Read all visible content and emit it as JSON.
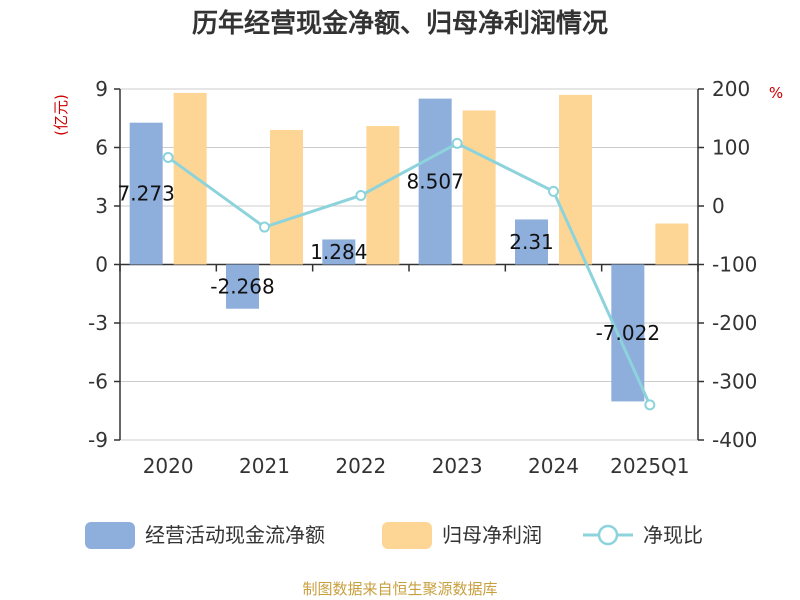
{
  "chart_data": {
    "type": "bar+line",
    "title": "历年经营现金净额、归母净利润情况",
    "categories": [
      "2020",
      "2021",
      "2022",
      "2023",
      "2024",
      "2025Q1"
    ],
    "y_left": {
      "unit": "(亿元)",
      "ylim": [
        -9,
        9
      ],
      "ticks": [
        "9",
        "6",
        "3",
        "0",
        "-3",
        "-6",
        "-9"
      ]
    },
    "y_right": {
      "unit": "%",
      "ylim": [
        -400,
        200
      ],
      "ticks": [
        "200",
        "100",
        "0",
        "-100",
        "-200",
        "-300",
        "-400"
      ]
    },
    "series": [
      {
        "name": "经营活动现金流净额",
        "type": "bar",
        "axis": "left",
        "color": "#8eaedc",
        "values": [
          7.273,
          -2.268,
          1.284,
          8.507,
          2.31,
          -7.022
        ],
        "labels": [
          "7.273",
          "-2.268",
          "1.284",
          "8.507",
          "2.31",
          "-7.022"
        ]
      },
      {
        "name": "归母净利润",
        "type": "bar",
        "axis": "left",
        "color": "#fdd695",
        "values": [
          8.8,
          6.9,
          7.1,
          7.9,
          8.7,
          2.1
        ]
      },
      {
        "name": "净现比",
        "type": "line",
        "axis": "right",
        "color": "#8dd3dc",
        "values": [
          83,
          -36,
          18,
          107,
          25,
          -340
        ]
      }
    ],
    "legend_position": "bottom",
    "grid": true
  },
  "source": "制图数据来自恒生聚源数据库"
}
